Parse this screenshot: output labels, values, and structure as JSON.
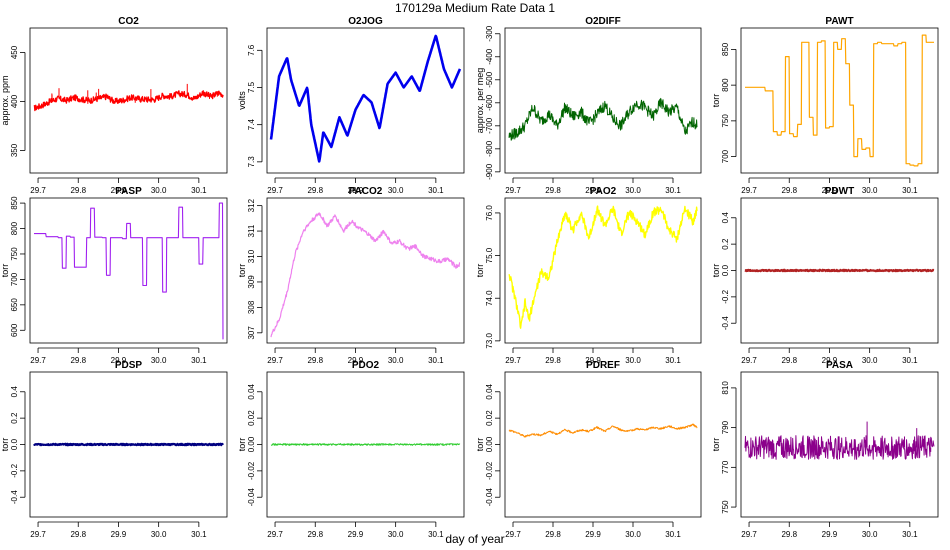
{
  "figure": {
    "title": "170129a   Medium Rate Data 1",
    "xlabel": "day of year"
  },
  "chart_data": [
    {
      "type": "line",
      "title": "CO2",
      "ylabel": "approx. ppm",
      "color": "#ff0000",
      "xlim": [
        29.68,
        30.17
      ],
      "ylim": [
        327,
        475
      ],
      "xticks": [
        29.7,
        29.8,
        29.9,
        30.0,
        30.1
      ],
      "xtick_labels": [
        "29.7",
        "29.8",
        "29.9",
        "30.0",
        "30.1"
      ],
      "yticks": [
        350,
        400,
        450
      ],
      "ytick_labels": [
        "350",
        "400",
        "450"
      ],
      "x": [
        29.69,
        29.71,
        29.73,
        29.75,
        29.77,
        29.79,
        29.81,
        29.83,
        29.85,
        29.87,
        29.89,
        29.91,
        29.93,
        29.95,
        29.97,
        29.99,
        30.01,
        30.03,
        30.05,
        30.07,
        30.09,
        30.11,
        30.13,
        30.15,
        30.16
      ],
      "y": [
        393,
        396,
        400,
        403,
        401,
        404,
        402,
        401,
        403,
        405,
        400,
        401,
        404,
        403,
        402,
        402,
        406,
        405,
        408,
        407,
        403,
        409,
        405,
        409,
        407
      ]
    },
    {
      "type": "line",
      "title": "O2JOG",
      "ylabel": "volts",
      "color": "#0000ee",
      "xlim": [
        29.68,
        30.17
      ],
      "ylim": [
        7.27,
        7.66
      ],
      "xticks": [
        29.7,
        29.8,
        29.9,
        30.0,
        30.1
      ],
      "xtick_labels": [
        "29.7",
        "29.8",
        "29.9",
        "30.0",
        "30.1"
      ],
      "yticks": [
        7.3,
        7.4,
        7.5,
        7.6
      ],
      "ytick_labels": [
        "7.3",
        "7.4",
        "7.5",
        "7.6"
      ],
      "x": [
        29.69,
        29.71,
        29.73,
        29.74,
        29.76,
        29.78,
        29.79,
        29.81,
        29.82,
        29.84,
        29.86,
        29.88,
        29.9,
        29.92,
        29.94,
        29.96,
        29.98,
        30.0,
        30.02,
        30.04,
        30.06,
        30.08,
        30.1,
        30.12,
        30.14,
        30.16
      ],
      "y": [
        7.36,
        7.53,
        7.58,
        7.52,
        7.45,
        7.5,
        7.4,
        7.3,
        7.38,
        7.34,
        7.42,
        7.37,
        7.44,
        7.48,
        7.46,
        7.39,
        7.51,
        7.54,
        7.5,
        7.53,
        7.49,
        7.57,
        7.64,
        7.55,
        7.5,
        7.55
      ]
    },
    {
      "type": "line",
      "title": "O2DIFF",
      "ylabel": "approx. per meg",
      "color": "#006400",
      "xlim": [
        29.68,
        30.17
      ],
      "ylim": [
        -905,
        -275
      ],
      "xticks": [
        29.7,
        29.8,
        29.9,
        30.0,
        30.1
      ],
      "xtick_labels": [
        "29.7",
        "29.8",
        "29.9",
        "30.0",
        "30.1"
      ],
      "yticks": [
        -900,
        -800,
        -700,
        -600,
        -500,
        -400,
        -300
      ],
      "ytick_labels": [
        "-900",
        "-800",
        "-700",
        "-600",
        "-500",
        "-400",
        "-300"
      ],
      "x": [
        29.69,
        29.71,
        29.73,
        29.75,
        29.77,
        29.79,
        29.81,
        29.83,
        29.85,
        29.87,
        29.89,
        29.91,
        29.93,
        29.95,
        29.97,
        29.99,
        30.01,
        30.03,
        30.05,
        30.07,
        30.09,
        30.11,
        30.13,
        30.15,
        30.16
      ],
      "y": [
        -745,
        -730,
        -700,
        -620,
        -680,
        -650,
        -700,
        -620,
        -660,
        -640,
        -690,
        -650,
        -610,
        -670,
        -700,
        -640,
        -600,
        -620,
        -660,
        -600,
        -640,
        -620,
        -730,
        -680,
        -700
      ]
    },
    {
      "type": "line",
      "title": "PAWT",
      "ylabel": "torr",
      "color": "#ffa500",
      "xlim": [
        29.68,
        30.17
      ],
      "ylim": [
        677,
        880
      ],
      "xticks": [
        29.7,
        29.8,
        29.9,
        30.0,
        30.1
      ],
      "xtick_labels": [
        "29.7",
        "29.8",
        "29.9",
        "30.0",
        "30.1"
      ],
      "yticks": [
        700,
        750,
        800,
        850
      ],
      "ytick_labels": [
        "700",
        "750",
        "800",
        "850"
      ],
      "x": [
        29.69,
        29.73,
        29.74,
        29.76,
        29.77,
        29.78,
        29.79,
        29.8,
        29.81,
        29.82,
        29.83,
        29.84,
        29.85,
        29.86,
        29.87,
        29.88,
        29.89,
        29.9,
        29.91,
        29.92,
        29.93,
        29.94,
        29.95,
        29.96,
        29.97,
        29.98,
        29.99,
        30.0,
        30.01,
        30.02,
        30.03,
        30.06,
        30.07,
        30.08,
        30.09,
        30.1,
        30.11,
        30.12,
        30.13,
        30.14,
        30.15,
        30.16
      ],
      "y": [
        797,
        797,
        792,
        735,
        730,
        735,
        840,
        732,
        728,
        745,
        860,
        860,
        755,
        730,
        860,
        862,
        740,
        742,
        860,
        850,
        865,
        830,
        772,
        700,
        725,
        710,
        712,
        700,
        858,
        860,
        858,
        855,
        858,
        860,
        690,
        688,
        687,
        690,
        870,
        860,
        860,
        860
      ]
    },
    {
      "type": "line",
      "title": "PASP",
      "ylabel": "torr",
      "color": "#a020f0",
      "xlim": [
        29.68,
        30.17
      ],
      "ylim": [
        575,
        860
      ],
      "xticks": [
        29.7,
        29.8,
        29.9,
        30.0,
        30.1
      ],
      "xtick_labels": [
        "29.7",
        "29.8",
        "29.9",
        "30.0",
        "30.1"
      ],
      "yticks": [
        600,
        650,
        700,
        750,
        800,
        850
      ],
      "ytick_labels": [
        "600",
        "650",
        "700",
        "750",
        "800",
        "850"
      ],
      "x": [
        29.69,
        29.72,
        29.75,
        29.76,
        29.77,
        29.78,
        29.79,
        29.82,
        29.83,
        29.84,
        29.86,
        29.87,
        29.88,
        29.9,
        29.91,
        29.92,
        29.93,
        29.95,
        29.96,
        29.97,
        30.0,
        30.01,
        30.02,
        30.04,
        30.05,
        30.06,
        30.09,
        30.1,
        30.11,
        30.14,
        30.15,
        30.16
      ],
      "y": [
        790,
        784,
        782,
        722,
        785,
        783,
        724,
        782,
        840,
        783,
        782,
        708,
        782,
        782,
        780,
        810,
        782,
        782,
        688,
        782,
        782,
        675,
        782,
        782,
        842,
        782,
        782,
        730,
        782,
        782,
        850,
        582
      ]
    },
    {
      "type": "line",
      "title": "PACO2",
      "ylabel": "torr",
      "color": "#ee82ee",
      "xlim": [
        29.68,
        30.17
      ],
      "ylim": [
        306.6,
        312.3
      ],
      "xticks": [
        29.7,
        29.8,
        29.9,
        30.0,
        30.1
      ],
      "xtick_labels": [
        "29.7",
        "29.8",
        "29.9",
        "30.0",
        "30.1"
      ],
      "yticks": [
        307,
        308,
        309,
        310,
        311,
        312
      ],
      "ytick_labels": [
        "307",
        "308",
        "309",
        "310",
        "311",
        "312"
      ],
      "x": [
        29.69,
        29.71,
        29.73,
        29.75,
        29.77,
        29.79,
        29.81,
        29.83,
        29.85,
        29.87,
        29.89,
        29.91,
        29.93,
        29.95,
        29.97,
        29.99,
        30.01,
        30.03,
        30.05,
        30.07,
        30.09,
        30.11,
        30.13,
        30.15,
        30.16
      ],
      "y": [
        306.9,
        307.5,
        308.6,
        310.1,
        311.0,
        311.4,
        311.7,
        311.2,
        311.6,
        311.0,
        311.4,
        311.1,
        310.9,
        310.6,
        311.0,
        310.5,
        310.6,
        310.3,
        310.4,
        310.0,
        309.9,
        309.8,
        309.9,
        309.6,
        309.7
      ]
    },
    {
      "type": "line",
      "title": "PAO2",
      "ylabel": "torr",
      "color": "#ffff00",
      "xlim": [
        29.68,
        30.17
      ],
      "ylim": [
        72.95,
        76.35
      ],
      "xticks": [
        29.7,
        29.8,
        29.9,
        30.0,
        30.1
      ],
      "xtick_labels": [
        "29.7",
        "29.8",
        "29.9",
        "30.0",
        "30.1"
      ],
      "yticks": [
        73.0,
        74.0,
        75.0,
        76.0
      ],
      "ytick_labels": [
        "73.0",
        "74.0",
        "75.0",
        "76.0"
      ],
      "x": [
        29.69,
        29.71,
        29.72,
        29.73,
        29.74,
        29.75,
        29.77,
        29.79,
        29.81,
        29.83,
        29.85,
        29.87,
        29.89,
        29.91,
        29.93,
        29.95,
        29.97,
        29.99,
        30.01,
        30.03,
        30.05,
        30.07,
        30.09,
        30.11,
        30.13,
        30.15,
        30.16
      ],
      "y": [
        74.6,
        73.8,
        73.3,
        73.9,
        73.5,
        73.9,
        74.6,
        74.5,
        75.3,
        76.0,
        75.6,
        76.0,
        75.4,
        76.1,
        75.7,
        76.1,
        75.5,
        76.0,
        75.8,
        75.5,
        76.0,
        76.1,
        75.6,
        75.4,
        76.1,
        75.8,
        76.1
      ]
    },
    {
      "type": "line",
      "title": "PDWT",
      "ylabel": "torr",
      "color": "#b22222",
      "xlim": [
        29.68,
        30.17
      ],
      "ylim": [
        -0.55,
        0.55
      ],
      "xticks": [
        29.7,
        29.8,
        29.9,
        30.0,
        30.1
      ],
      "xtick_labels": [
        "29.7",
        "29.8",
        "29.9",
        "30.0",
        "30.1"
      ],
      "yticks": [
        -0.4,
        -0.2,
        0.0,
        0.2,
        0.4
      ],
      "ytick_labels": [
        "-0.4",
        "-0.2",
        "0.0",
        "0.2",
        "0.4"
      ],
      "x": [
        29.69,
        30.16
      ],
      "y": [
        0.0,
        0.0
      ]
    },
    {
      "type": "line",
      "title": "PDSP",
      "ylabel": "torr",
      "color": "#000080",
      "xlim": [
        29.68,
        30.17
      ],
      "ylim": [
        -0.55,
        0.55
      ],
      "xticks": [
        29.7,
        29.8,
        29.9,
        30.0,
        30.1
      ],
      "xtick_labels": [
        "29.7",
        "29.8",
        "29.9",
        "30.0",
        "30.1"
      ],
      "yticks": [
        -0.4,
        -0.2,
        0.0,
        0.2,
        0.4
      ],
      "ytick_labels": [
        "-0.4",
        "-0.2",
        "0.0",
        "0.2",
        "0.4"
      ],
      "x": [
        29.69,
        30.16
      ],
      "y": [
        0.0,
        0.0
      ]
    },
    {
      "type": "line",
      "title": "PDO2",
      "ylabel": "torr",
      "color": "#32cd32",
      "xlim": [
        29.68,
        30.17
      ],
      "ylim": [
        -0.055,
        0.055
      ],
      "xticks": [
        29.7,
        29.8,
        29.9,
        30.0,
        30.1
      ],
      "xtick_labels": [
        "29.7",
        "29.8",
        "29.9",
        "30.0",
        "30.1"
      ],
      "yticks": [
        -0.04,
        -0.02,
        0.0,
        0.02,
        0.04
      ],
      "ytick_labels": [
        "-0.04",
        "-0.02",
        "0.00",
        "0.02",
        "0.04"
      ],
      "x": [
        29.69,
        30.16
      ],
      "y": [
        0.0,
        0.0
      ]
    },
    {
      "type": "line",
      "title": "PDREF",
      "ylabel": "torr",
      "color": "#ff8c00",
      "xlim": [
        29.68,
        30.17
      ],
      "ylim": [
        -0.055,
        0.055
      ],
      "xticks": [
        29.7,
        29.8,
        29.9,
        30.0,
        30.1
      ],
      "xtick_labels": [
        "29.7",
        "29.8",
        "29.9",
        "30.0",
        "30.1"
      ],
      "yticks": [
        -0.04,
        -0.02,
        0.0,
        0.02,
        0.04
      ],
      "ytick_labels": [
        "-0.04",
        "-0.02",
        "0.00",
        "0.02",
        "0.04"
      ],
      "x": [
        29.69,
        29.71,
        29.73,
        29.75,
        29.77,
        29.79,
        29.81,
        29.83,
        29.85,
        29.87,
        29.89,
        29.91,
        29.93,
        29.95,
        29.97,
        29.99,
        30.01,
        30.03,
        30.05,
        30.07,
        30.09,
        30.11,
        30.13,
        30.15,
        30.16
      ],
      "y": [
        0.011,
        0.009,
        0.006,
        0.008,
        0.007,
        0.01,
        0.008,
        0.011,
        0.009,
        0.011,
        0.01,
        0.013,
        0.01,
        0.014,
        0.011,
        0.01,
        0.012,
        0.011,
        0.013,
        0.012,
        0.014,
        0.012,
        0.013,
        0.015,
        0.013
      ]
    },
    {
      "type": "line",
      "title": "PASA",
      "ylabel": "torr",
      "color": "#8b008b",
      "xlim": [
        29.68,
        30.17
      ],
      "ylim": [
        745,
        818
      ],
      "xticks": [
        29.7,
        29.8,
        29.9,
        30.0,
        30.1
      ],
      "xtick_labels": [
        "29.7",
        "29.8",
        "29.9",
        "30.0",
        "30.1"
      ],
      "yticks": [
        750,
        770,
        790,
        810
      ],
      "ytick_labels": [
        "750",
        "770",
        "790",
        "810"
      ],
      "x": [
        29.69,
        30.16
      ],
      "y": [
        780,
        780
      ]
    }
  ]
}
